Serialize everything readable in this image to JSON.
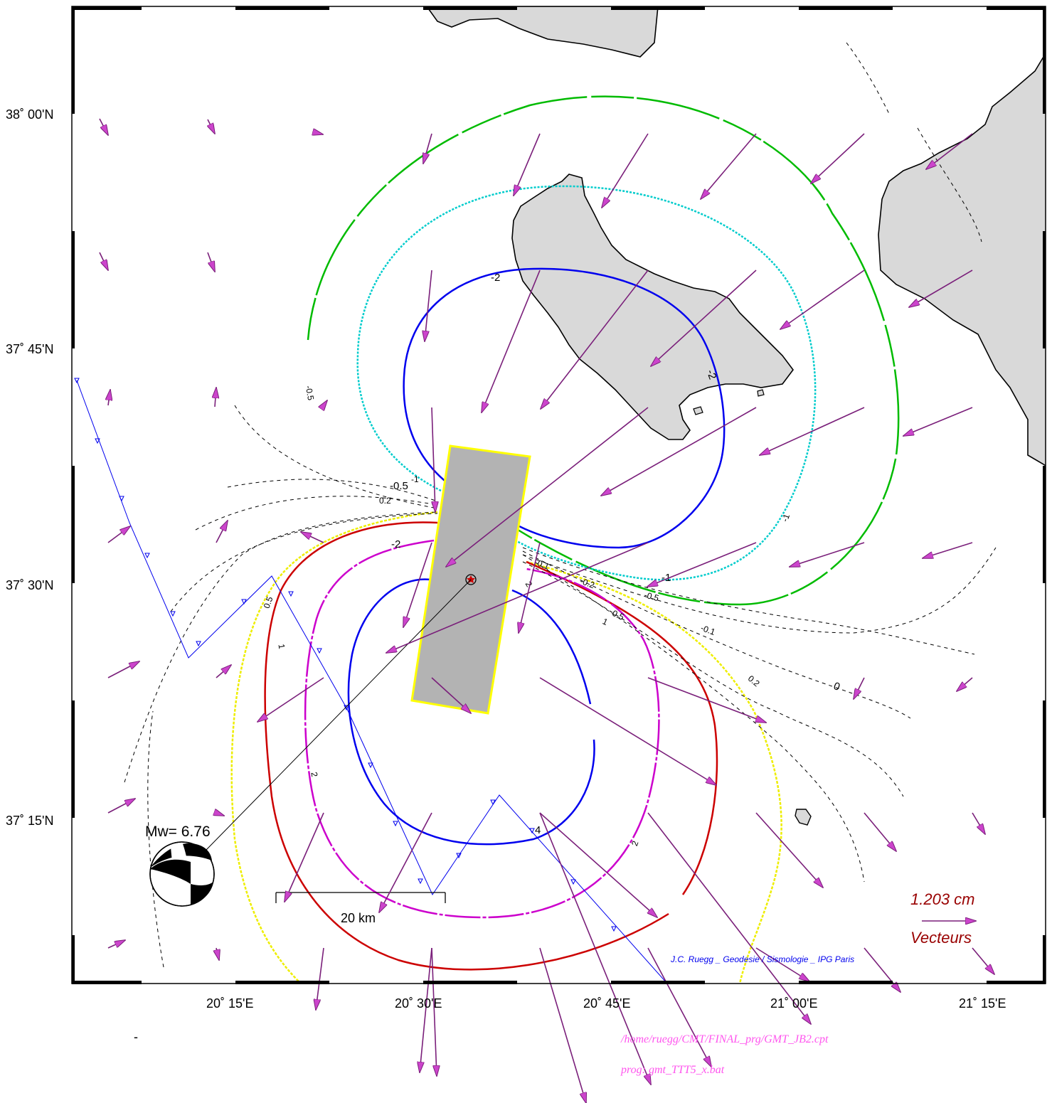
{
  "map": {
    "lat_labels": [
      "38˚ 00'N",
      "37˚ 45'N",
      "37˚ 30'N",
      "37˚ 15'N"
    ],
    "lon_labels": [
      "20˚ 15'E",
      "20˚ 30'E",
      "20˚ 45'E",
      "21˚ 00'E",
      "21˚ 15'E"
    ],
    "magnitude_label": "Mw= 6.76",
    "scale_bar_label": "20 km",
    "vector_scale_value": "1.203  cm",
    "vector_scale_caption": "Vecteurs",
    "credit": "J.C. Ruegg _ Geodesie / Sismologie _ IPG Paris",
    "footer_cpt": "/home/ruegg/CMT/FINAL_prg/GMT_JB2.cpt",
    "footer_prog": "prog: gmt_TTT5_x.bat",
    "stray_mark": "-",
    "contour_labels": {
      "neg2": "-2",
      "neg1": "-1",
      "neg05": "-0.5",
      "neg02": "-0.2",
      "neg01": "-0.1",
      "zero": "0",
      "pos01": "0.1",
      "pos02": "0.2",
      "pos05": "0.5",
      "pos1": "1",
      "pos2": "2",
      "pos4": "4"
    },
    "colors": {
      "land": "#d9d9d9",
      "fault_fill": "#b3b3b3",
      "fault_outline": "#ffff00",
      "vector": "#7a1f7a",
      "vector_head": "#cc44cc",
      "contour_neg_far": "#00bb00",
      "contour_neg_mid": "#00cccc",
      "contour_blue": "#0000ee",
      "contour_yellow": "#eeee00",
      "contour_red": "#cc0000",
      "contour_magenta": "#cc00cc",
      "trench": "#0000ee"
    }
  }
}
